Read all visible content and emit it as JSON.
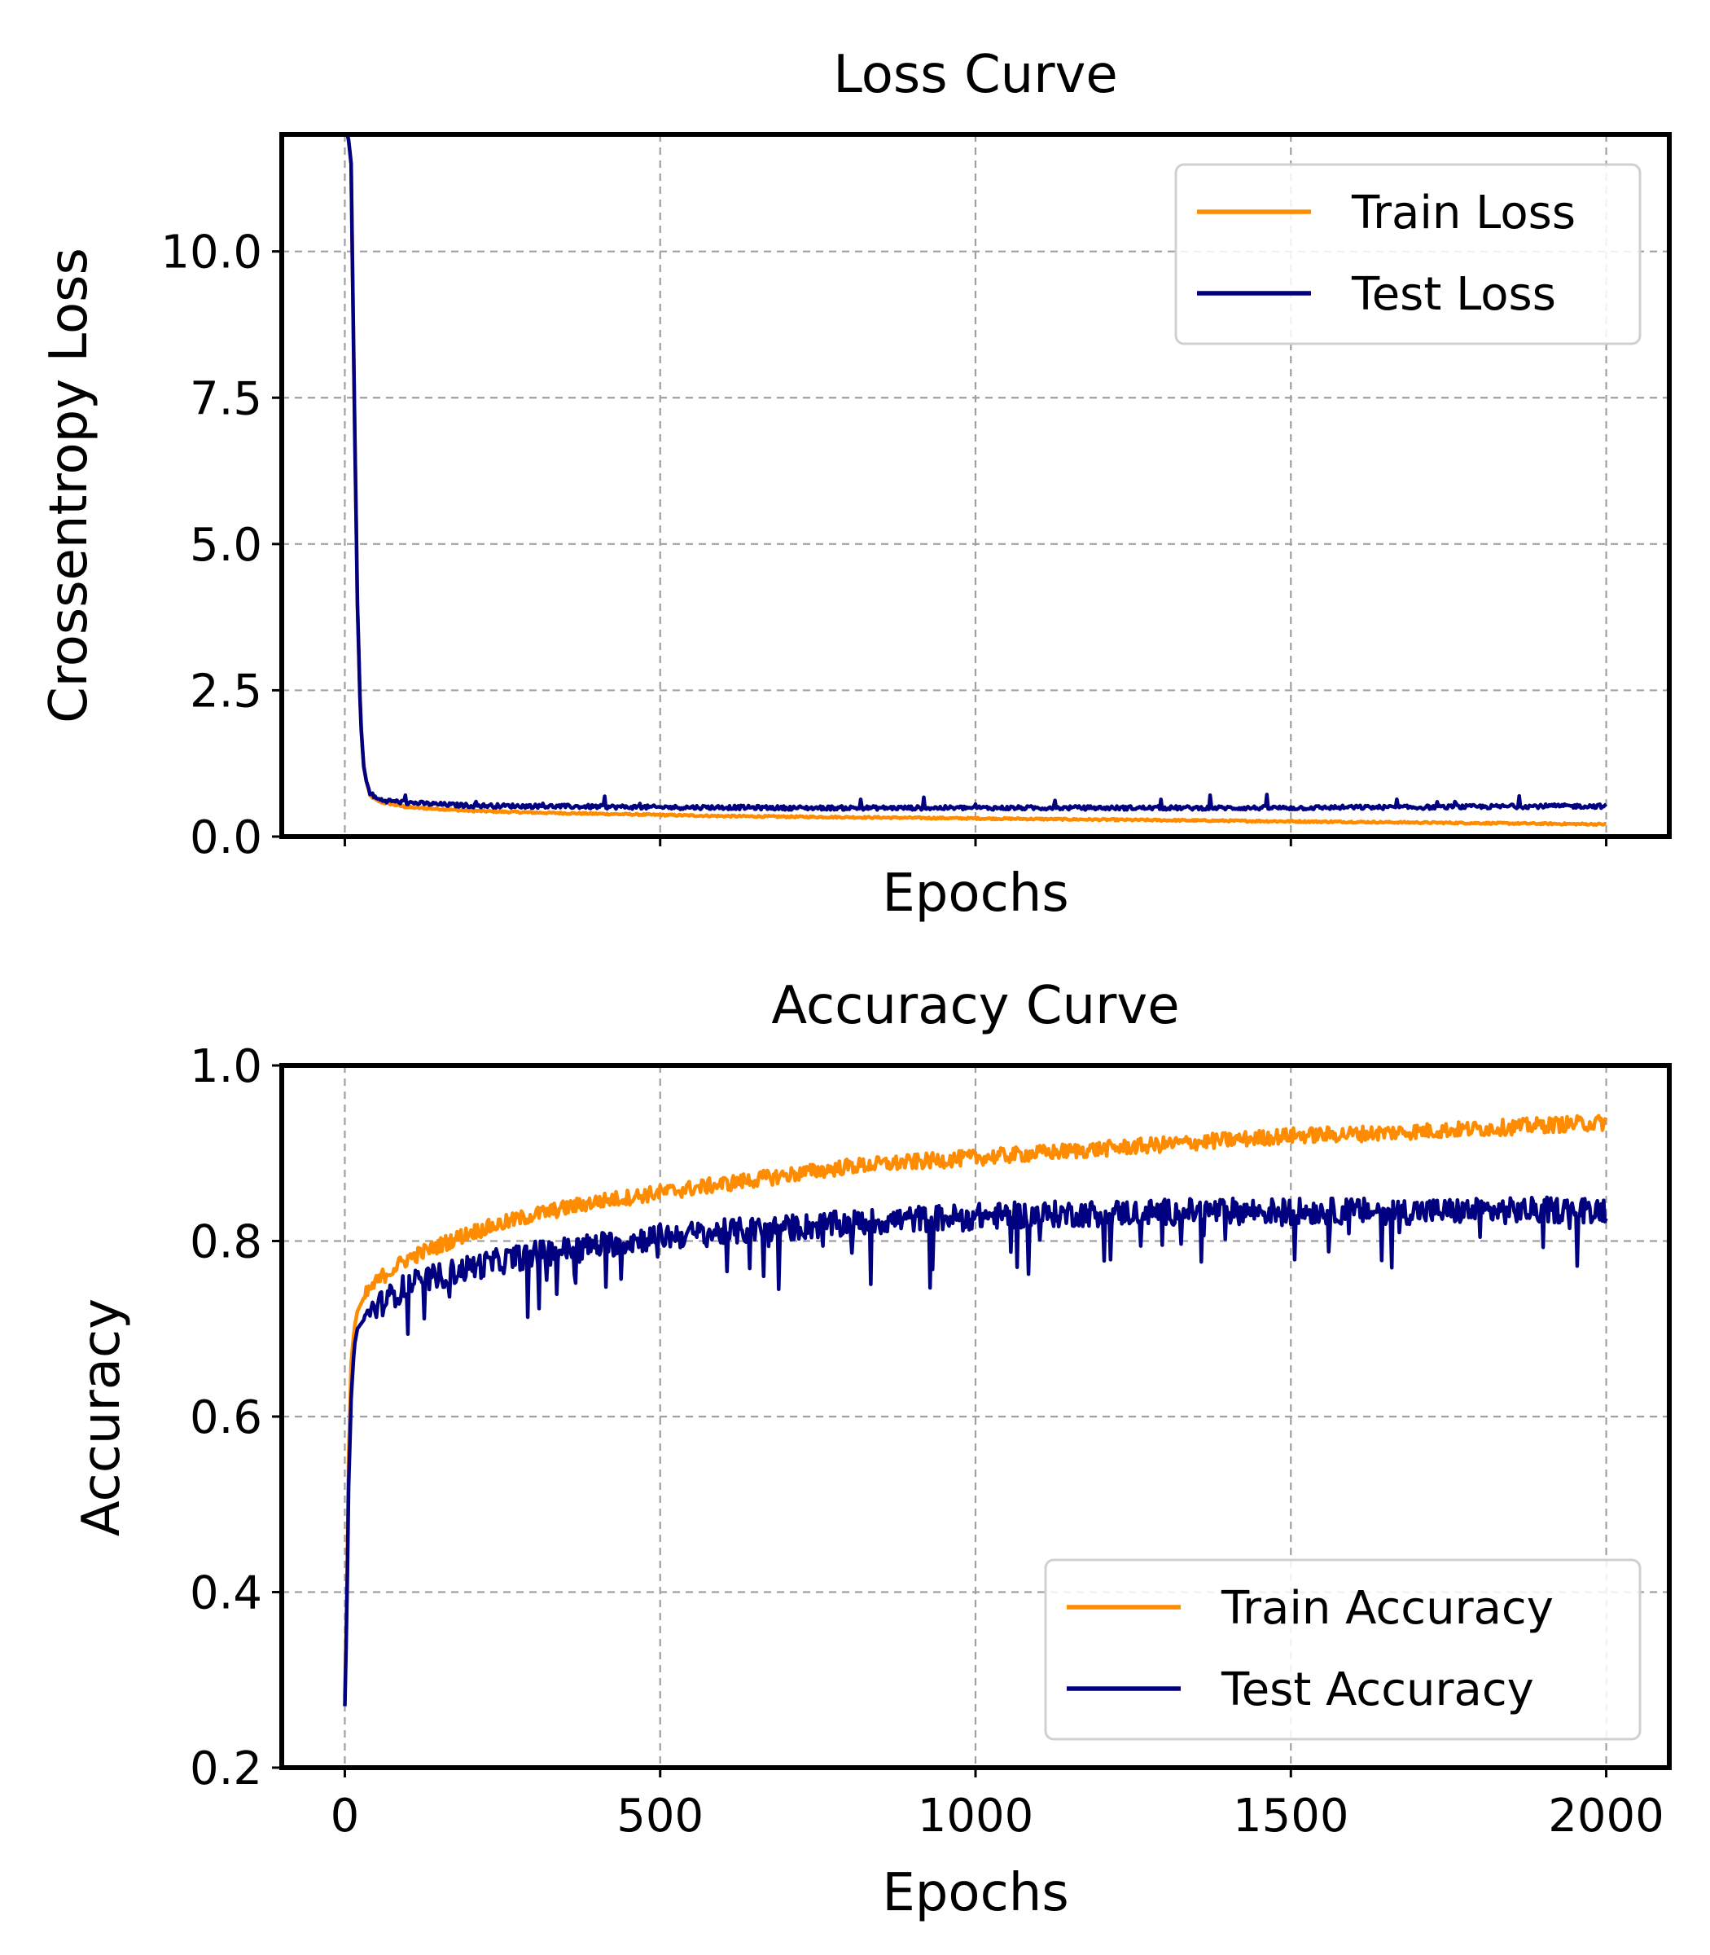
{
  "chart_data": [
    {
      "type": "line",
      "title": "Loss Curve",
      "xlabel": "Epochs",
      "ylabel": "Crossentropy Loss",
      "xlim": [
        -100,
        2100
      ],
      "ylim": [
        0,
        12
      ],
      "x_ticks": [
        0,
        500,
        1000,
        1500,
        2000
      ],
      "x_tick_labels_visible": false,
      "y_ticks": [
        0.0,
        2.5,
        5.0,
        7.5,
        10.0
      ],
      "y_tick_labels": [
        "0.0",
        "2.5",
        "5.0",
        "7.5",
        "10.0"
      ],
      "grid": true,
      "legend_position": "top-right",
      "colors": {
        "train": "#ff8c00",
        "test": "#000080"
      },
      "series": [
        {
          "name": "Train Loss",
          "x": [
            0,
            5,
            10,
            15,
            20,
            25,
            30,
            35,
            40,
            50,
            60,
            80,
            100,
            150,
            200,
            300,
            400,
            500,
            600,
            700,
            800,
            900,
            1000,
            1100,
            1200,
            1300,
            1400,
            1500,
            1600,
            1700,
            1800,
            1900,
            2000
          ],
          "values": [
            12,
            12,
            11.5,
            7.5,
            4.0,
            2.0,
            1.2,
            0.9,
            0.7,
            0.62,
            0.58,
            0.54,
            0.5,
            0.47,
            0.44,
            0.41,
            0.39,
            0.37,
            0.35,
            0.34,
            0.33,
            0.32,
            0.31,
            0.3,
            0.29,
            0.28,
            0.27,
            0.26,
            0.25,
            0.24,
            0.23,
            0.22,
            0.21
          ]
        },
        {
          "name": "Test Loss",
          "x": [
            0,
            5,
            10,
            15,
            20,
            25,
            30,
            35,
            40,
            50,
            60,
            80,
            100,
            150,
            200,
            300,
            400,
            500,
            600,
            700,
            800,
            900,
            1000,
            1100,
            1200,
            1300,
            1400,
            1500,
            1600,
            1700,
            1800,
            1900,
            2000
          ],
          "values": [
            12,
            12,
            11.5,
            7.5,
            4.0,
            2.0,
            1.2,
            0.9,
            0.75,
            0.65,
            0.62,
            0.6,
            0.58,
            0.55,
            0.53,
            0.52,
            0.51,
            0.5,
            0.5,
            0.49,
            0.49,
            0.49,
            0.49,
            0.49,
            0.49,
            0.49,
            0.49,
            0.49,
            0.5,
            0.5,
            0.51,
            0.52,
            0.52
          ]
        }
      ]
    },
    {
      "type": "line",
      "title": "Accuracy Curve",
      "xlabel": "Epochs",
      "ylabel": "Accuracy",
      "xlim": [
        -100,
        2100
      ],
      "ylim": [
        0.2,
        1.0
      ],
      "x_ticks": [
        0,
        500,
        1000,
        1500,
        2000
      ],
      "x_tick_labels": [
        "0",
        "500",
        "1000",
        "1500",
        "2000"
      ],
      "y_ticks": [
        0.2,
        0.4,
        0.6,
        0.8,
        1.0
      ],
      "y_tick_labels": [
        "0.2",
        "0.4",
        "0.6",
        "0.8",
        "1.0"
      ],
      "grid": true,
      "legend_position": "bottom-right",
      "colors": {
        "train": "#ff8c00",
        "test": "#000080"
      },
      "series": [
        {
          "name": "Train Accuracy",
          "x": [
            0,
            3,
            6,
            10,
            15,
            20,
            30,
            40,
            60,
            80,
            100,
            150,
            200,
            300,
            400,
            500,
            600,
            700,
            800,
            900,
            1000,
            1100,
            1200,
            1300,
            1400,
            1500,
            1600,
            1700,
            1800,
            1900,
            2000
          ],
          "values": [
            0.28,
            0.38,
            0.55,
            0.66,
            0.7,
            0.72,
            0.735,
            0.745,
            0.76,
            0.77,
            0.78,
            0.795,
            0.81,
            0.83,
            0.845,
            0.855,
            0.865,
            0.875,
            0.885,
            0.89,
            0.895,
            0.9,
            0.905,
            0.91,
            0.915,
            0.92,
            0.922,
            0.925,
            0.928,
            0.932,
            0.935
          ]
        },
        {
          "name": "Test Accuracy",
          "x": [
            0,
            3,
            6,
            10,
            15,
            20,
            30,
            40,
            60,
            80,
            100,
            150,
            200,
            300,
            400,
            500,
            600,
            700,
            800,
            900,
            1000,
            1100,
            1200,
            1300,
            1400,
            1500,
            1600,
            1700,
            1800,
            1900,
            2000
          ],
          "values": [
            0.27,
            0.37,
            0.52,
            0.62,
            0.68,
            0.7,
            0.71,
            0.72,
            0.73,
            0.74,
            0.75,
            0.76,
            0.77,
            0.785,
            0.795,
            0.805,
            0.81,
            0.815,
            0.82,
            0.825,
            0.828,
            0.83,
            0.832,
            0.833,
            0.834,
            0.834,
            0.834,
            0.834,
            0.834,
            0.835,
            0.836
          ]
        }
      ]
    }
  ]
}
